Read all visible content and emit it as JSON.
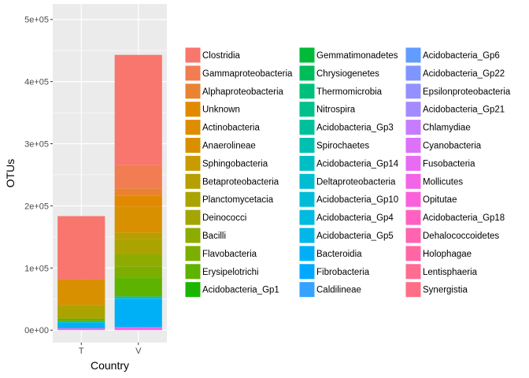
{
  "chart_data": {
    "type": "bar",
    "stacked": true,
    "xlabel": "Country",
    "ylabel": "OTUs",
    "categories": [
      "T",
      "V"
    ],
    "ylim": [
      -20000,
      525000
    ],
    "yticks": [
      0,
      100000,
      200000,
      300000,
      400000,
      500000
    ],
    "ytick_labels": [
      "0e+00",
      "1e+05",
      "2e+05",
      "3e+05",
      "4e+05",
      "5e+05"
    ],
    "grid": true,
    "legend_position": "right",
    "legend_columns": 3,
    "series": [
      {
        "name": "Clostridia",
        "color": "#F8766D",
        "values": [
          102000,
          177000
        ]
      },
      {
        "name": "Gammaproteobacteria",
        "color": "#F27D52",
        "values": [
          0,
          38000
        ]
      },
      {
        "name": "Alphaproteobacteria",
        "color": "#EA8331",
        "values": [
          0,
          12000
        ]
      },
      {
        "name": "Unknown",
        "color": "#E18A00",
        "values": [
          0,
          17000
        ]
      },
      {
        "name": "Actinobacteria",
        "color": "#DE8C00",
        "values": [
          0,
          0
        ]
      },
      {
        "name": "Anaerolineae",
        "color": "#D89000",
        "values": [
          41000,
          42000
        ]
      },
      {
        "name": "Sphingobacteria",
        "color": "#C89B00",
        "values": [
          0,
          0
        ]
      },
      {
        "name": "Betaproteobacteria",
        "color": "#B79F00",
        "values": [
          0,
          10000
        ]
      },
      {
        "name": "Planctomycetacia",
        "color": "#ABA300",
        "values": [
          22000,
          25000
        ]
      },
      {
        "name": "Deinococci",
        "color": "#A3A500",
        "values": [
          0,
          0
        ]
      },
      {
        "name": "Bacilli",
        "color": "#8EAB00",
        "values": [
          0,
          20000
        ]
      },
      {
        "name": "Flavobacteria",
        "color": "#7CAE00",
        "values": [
          0,
          18000
        ]
      },
      {
        "name": "Erysipelotrichi",
        "color": "#5EB300",
        "values": [
          4000,
          30000
        ]
      },
      {
        "name": "Acidobacteria_Gp1",
        "color": "#1BB500",
        "values": [
          0,
          0
        ]
      },
      {
        "name": "Gemmatimonadetes",
        "color": "#00BA38",
        "values": [
          0,
          0
        ]
      },
      {
        "name": "Chrysiogenetes",
        "color": "#00BC59",
        "values": [
          0,
          0
        ]
      },
      {
        "name": "Thermomicrobia",
        "color": "#00BF7D",
        "values": [
          0,
          0
        ]
      },
      {
        "name": "Nitrospira",
        "color": "#00C08B",
        "values": [
          0,
          0
        ]
      },
      {
        "name": "Acidobacteria_Gp3",
        "color": "#00C09C",
        "values": [
          0,
          0
        ]
      },
      {
        "name": "Spirochaetes",
        "color": "#00C0AF",
        "values": [
          0,
          0
        ]
      },
      {
        "name": "Acidobacteria_Gp14",
        "color": "#00BFC4",
        "values": [
          2500,
          0
        ]
      },
      {
        "name": "Deltaproteobacteria",
        "color": "#00BDD2",
        "values": [
          0,
          0
        ]
      },
      {
        "name": "Acidobacteria_Gp10",
        "color": "#00BCD8",
        "values": [
          0,
          0
        ]
      },
      {
        "name": "Acidobacteria_Gp4",
        "color": "#00BAE0",
        "values": [
          0,
          4000
        ]
      },
      {
        "name": "Acidobacteria_Gp5",
        "color": "#00B7E9",
        "values": [
          0,
          0
        ]
      },
      {
        "name": "Bacteroidia",
        "color": "#00B0F6",
        "values": [
          9000,
          45000
        ]
      },
      {
        "name": "Fibrobacteria",
        "color": "#00A9FF",
        "values": [
          0,
          0
        ]
      },
      {
        "name": "Caldilineae",
        "color": "#35A2FF",
        "values": [
          0,
          0
        ]
      },
      {
        "name": "Acidobacteria_Gp6",
        "color": "#619CFF",
        "values": [
          0,
          0
        ]
      },
      {
        "name": "Acidobacteria_Gp22",
        "color": "#7F96FF",
        "values": [
          0,
          0
        ]
      },
      {
        "name": "Epsilonproteobacteria",
        "color": "#9590FF",
        "values": [
          0,
          0
        ]
      },
      {
        "name": "Acidobacteria_Gp21",
        "color": "#A58AFF",
        "values": [
          0,
          0
        ]
      },
      {
        "name": "Chlamydiae",
        "color": "#C77CFF",
        "values": [
          0,
          0
        ]
      },
      {
        "name": "Cyanobacteria",
        "color": "#DC71FA",
        "values": [
          0,
          0
        ]
      },
      {
        "name": "Fusobacteria",
        "color": "#E76BF3",
        "values": [
          0,
          0
        ]
      },
      {
        "name": "Mollicutes",
        "color": "#F265E7",
        "values": [
          3000,
          5000
        ]
      },
      {
        "name": "Opitutae",
        "color": "#FA62DB",
        "values": [
          0,
          0
        ]
      },
      {
        "name": "Acidobacteria_Gp18",
        "color": "#FF61C3",
        "values": [
          0,
          0
        ]
      },
      {
        "name": "Dehalococcoidetes",
        "color": "#FF64B0",
        "values": [
          0,
          0
        ]
      },
      {
        "name": "Holophagae",
        "color": "#FF67A4",
        "values": [
          0,
          0
        ]
      },
      {
        "name": "Lentisphaeria",
        "color": "#FF6C91",
        "values": [
          0,
          0
        ]
      },
      {
        "name": "Synergistia",
        "color": "#FD6F86",
        "values": [
          0,
          0
        ]
      }
    ]
  }
}
